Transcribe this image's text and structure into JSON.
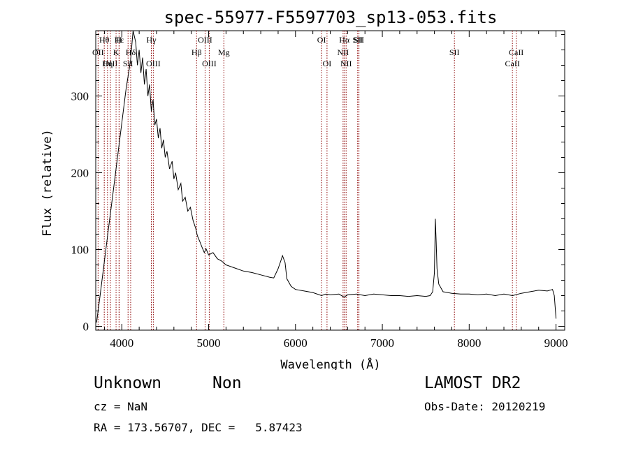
{
  "chart_data": {
    "type": "line",
    "title": "spec-55977-F5597703_sp13-053.fits",
    "xlabel": "Wavelength (Å)",
    "ylabel": "Flux (relative)",
    "xlim": [
      3700,
      9100
    ],
    "ylim": [
      -5,
      385
    ],
    "xticks": [
      4000,
      5000,
      6000,
      7000,
      8000,
      9000
    ],
    "yticks": [
      0,
      100,
      200,
      300
    ],
    "grid": false,
    "line_color": "#000000",
    "marker_color": "#8b0000",
    "series": [
      {
        "values": [
          [
            3710,
            5
          ],
          [
            3750,
            40
          ],
          [
            3800,
            85
          ],
          [
            3850,
            130
          ],
          [
            3900,
            175
          ],
          [
            3950,
            220
          ],
          [
            4000,
            265
          ],
          [
            4050,
            310
          ],
          [
            4100,
            345
          ],
          [
            4130,
            385
          ],
          [
            4160,
            370
          ],
          [
            4180,
            340
          ],
          [
            4200,
            360
          ],
          [
            4220,
            330
          ],
          [
            4240,
            350
          ],
          [
            4260,
            315
          ],
          [
            4280,
            335
          ],
          [
            4300,
            300
          ],
          [
            4320,
            315
          ],
          [
            4340,
            280
          ],
          [
            4360,
            295
          ],
          [
            4380,
            262
          ],
          [
            4400,
            270
          ],
          [
            4420,
            245
          ],
          [
            4440,
            258
          ],
          [
            4460,
            232
          ],
          [
            4480,
            243
          ],
          [
            4500,
            220
          ],
          [
            4520,
            228
          ],
          [
            4550,
            205
          ],
          [
            4580,
            215
          ],
          [
            4600,
            192
          ],
          [
            4620,
            200
          ],
          [
            4650,
            178
          ],
          [
            4680,
            186
          ],
          [
            4700,
            163
          ],
          [
            4730,
            168
          ],
          [
            4760,
            150
          ],
          [
            4790,
            155
          ],
          [
            4820,
            138
          ],
          [
            4850,
            128
          ],
          [
            4870,
            118
          ],
          [
            4900,
            110
          ],
          [
            4920,
            104
          ],
          [
            4950,
            96
          ],
          [
            4970,
            101
          ],
          [
            5000,
            93
          ],
          [
            5050,
            96
          ],
          [
            5100,
            88
          ],
          [
            5150,
            85
          ],
          [
            5200,
            80
          ],
          [
            5300,
            76
          ],
          [
            5400,
            72
          ],
          [
            5500,
            70
          ],
          [
            5600,
            67
          ],
          [
            5700,
            64
          ],
          [
            5750,
            63
          ],
          [
            5800,
            75
          ],
          [
            5830,
            85
          ],
          [
            5850,
            92
          ],
          [
            5880,
            83
          ],
          [
            5900,
            62
          ],
          [
            5950,
            52
          ],
          [
            6000,
            48
          ],
          [
            6100,
            46
          ],
          [
            6200,
            44
          ],
          [
            6300,
            40
          ],
          [
            6350,
            42
          ],
          [
            6400,
            41
          ],
          [
            6500,
            42
          ],
          [
            6560,
            38
          ],
          [
            6600,
            41
          ],
          [
            6700,
            42
          ],
          [
            6800,
            40
          ],
          [
            6900,
            42
          ],
          [
            7000,
            41
          ],
          [
            7100,
            40
          ],
          [
            7200,
            40
          ],
          [
            7300,
            39
          ],
          [
            7400,
            40
          ],
          [
            7500,
            39
          ],
          [
            7550,
            40
          ],
          [
            7580,
            45
          ],
          [
            7600,
            70
          ],
          [
            7610,
            140
          ],
          [
            7620,
            110
          ],
          [
            7630,
            75
          ],
          [
            7650,
            55
          ],
          [
            7700,
            45
          ],
          [
            7800,
            43
          ],
          [
            7900,
            42
          ],
          [
            8000,
            42
          ],
          [
            8100,
            41
          ],
          [
            8200,
            42
          ],
          [
            8300,
            40
          ],
          [
            8400,
            42
          ],
          [
            8500,
            40
          ],
          [
            8600,
            43
          ],
          [
            8700,
            45
          ],
          [
            8800,
            47
          ],
          [
            8900,
            46
          ],
          [
            8960,
            48
          ],
          [
            8980,
            40
          ],
          [
            9000,
            10
          ]
        ]
      }
    ],
    "lines": [
      {
        "label": "Hθ",
        "x": 3798,
        "row": 0
      },
      {
        "label": "OII",
        "x": 3727,
        "row": 1
      },
      {
        "label": "OIII",
        "x": 3869,
        "row": 2
      },
      {
        "label": "Hη",
        "x": 3835,
        "row": 2
      },
      {
        "label": "H",
        "x": 3968,
        "row": 0
      },
      {
        "label": "K",
        "x": 3934,
        "row": 1
      },
      {
        "label": "Hε",
        "x": 3970,
        "row": 0
      },
      {
        "label": "Hδ",
        "x": 4102,
        "row": 1
      },
      {
        "label": "SII",
        "x": 4072,
        "row": 2
      },
      {
        "label": "Hγ",
        "x": 4340,
        "row": 0
      },
      {
        "label": "OIII",
        "x": 4363,
        "row": 2
      },
      {
        "label": "OIII",
        "x": 4959,
        "row": 0
      },
      {
        "label": "Hβ",
        "x": 4861,
        "row": 1
      },
      {
        "label": "OIII",
        "x": 5007,
        "row": 2
      },
      {
        "label": "Mg",
        "x": 5175,
        "row": 1
      },
      {
        "label": "OI",
        "x": 6300,
        "row": 0
      },
      {
        "label": "OI",
        "x": 6363,
        "row": 2
      },
      {
        "label": "Hα",
        "x": 6563,
        "row": 0
      },
      {
        "label": "NII",
        "x": 6548,
        "row": 1
      },
      {
        "label": "NII",
        "x": 6583,
        "row": 2
      },
      {
        "label": "SII",
        "x": 6716,
        "row": 0
      },
      {
        "label": "SII",
        "x": 6731,
        "row": 0
      },
      {
        "label": "SII",
        "x": 7830,
        "row": 1
      },
      {
        "label": "CaII",
        "x": 8542,
        "row": 1
      },
      {
        "label": "CaII",
        "x": 8498,
        "row": 2
      }
    ]
  },
  "info": {
    "class": "Unknown",
    "subclass": "Non",
    "survey": "LAMOST DR2",
    "cz": "cz = NaN",
    "obs_date": "Obs-Date: 20120219",
    "radec": "RA = 173.56707, DEC =   5.87423"
  }
}
